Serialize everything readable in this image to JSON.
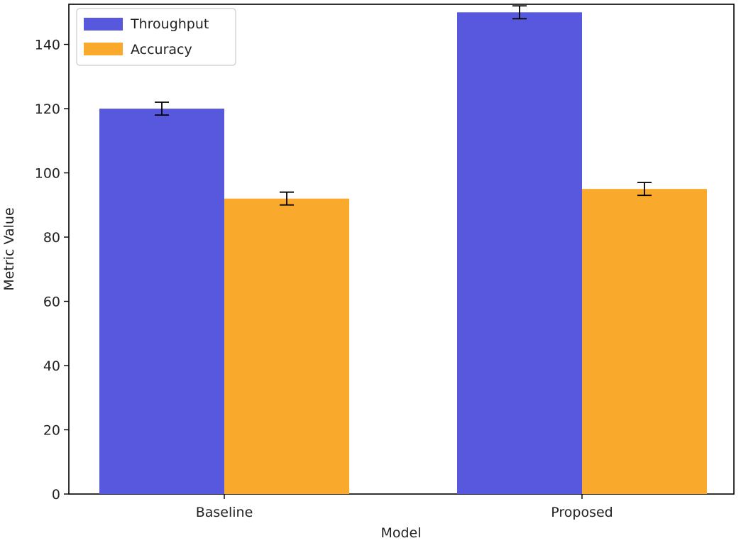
{
  "chart_data": {
    "type": "bar",
    "title": "",
    "xlabel": "Model",
    "ylabel": "Metric Value",
    "categories": [
      "Baseline",
      "Proposed"
    ],
    "series": [
      {
        "name": "Throughput",
        "color": "#5858df",
        "values": [
          120,
          150
        ],
        "errors": [
          2,
          2
        ]
      },
      {
        "name": "Accuracy",
        "color": "#f9a92b",
        "values": [
          92,
          95
        ],
        "errors": [
          2,
          2
        ]
      }
    ],
    "ylim": [
      0,
      152.5
    ],
    "yticks": [
      0,
      20,
      40,
      60,
      80,
      100,
      120,
      140
    ],
    "grid": false,
    "legend_position": "top-left"
  }
}
